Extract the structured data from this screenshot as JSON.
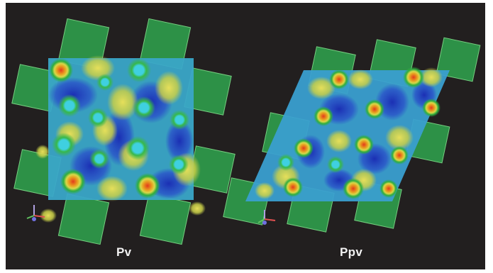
{
  "panels": [
    {
      "id": "pv",
      "label": "Pv"
    },
    {
      "id": "ppv",
      "label": "Ppv"
    }
  ],
  "colors": {
    "background": "#221f1f",
    "octahedra": "#2e9e4a",
    "density_high": "#e03a1e",
    "density_mid": "#d8c34a",
    "density_low": "#1f3fbf",
    "density_base": "#3aa6c8",
    "atom_shell": "#4cc04c"
  },
  "icons": [
    "axis-triad-icon",
    "axis-triad-icon"
  ]
}
